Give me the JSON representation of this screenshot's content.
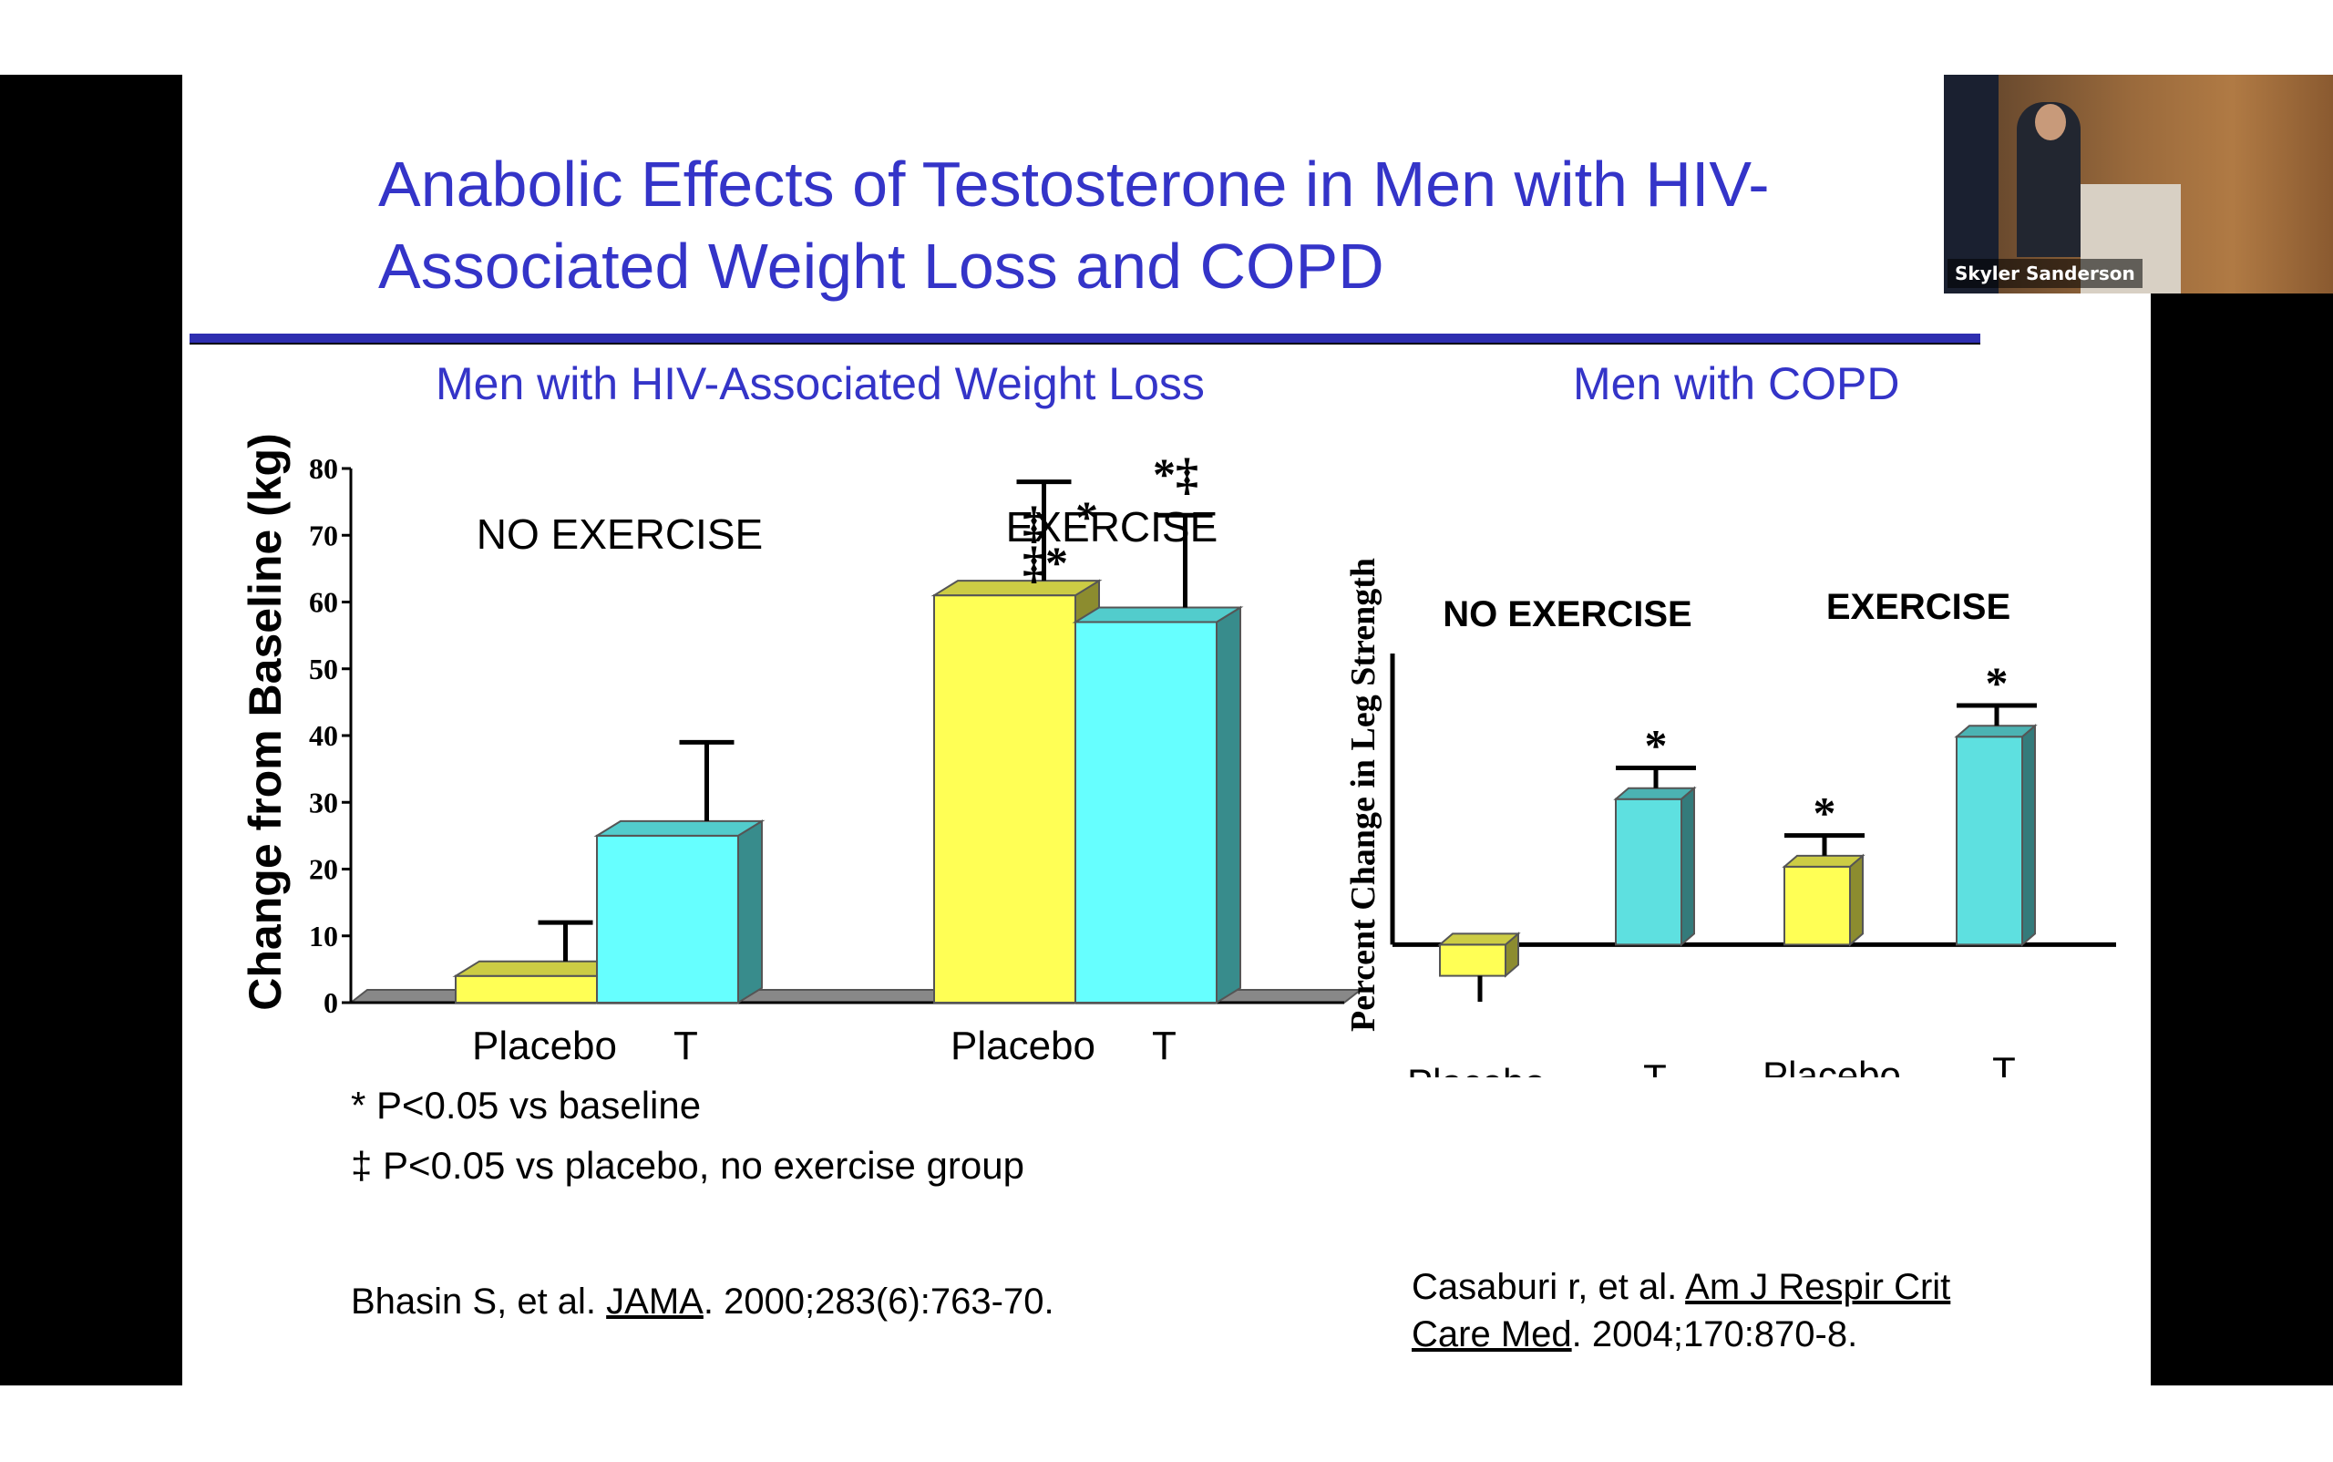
{
  "slide": {
    "title_line1": "Anabolic Effects of Testosterone in Men with HIV-",
    "title_line2": "Associated Weight Loss and COPD",
    "left_subtitle": "Men with HIV-Associated Weight Loss",
    "right_subtitle": "Men with COPD",
    "footnote1": "* P<0.05 vs baseline",
    "footnote2": "‡ P<0.05 vs placebo, no exercise group",
    "ref_left_prefix": "Bhasin S, et al. ",
    "ref_left_journal": "JAMA",
    "ref_left_suffix": ". 2000;283(6):763-70.",
    "ref_right_prefix": "Casaburi r, et al. ",
    "ref_right_journal_line1": "Am J Respir Crit",
    "ref_right_journal_line2": "Care Med",
    "ref_right_suffix": ". 2004;170:870-8."
  },
  "video": {
    "speaker_name": "Skyler Sanderson"
  },
  "colors": {
    "placebo": "#ffff55",
    "testosterone": "#66ffff",
    "copd_t": "#5ee0e0",
    "title_blue": "#3434c8"
  },
  "chart_data": [
    {
      "type": "bar",
      "title": "Men with HIV-Associated Weight Loss",
      "ylabel": "Change from Baseline (kg)",
      "ylim": [
        0,
        80
      ],
      "yticks": [
        0,
        10,
        20,
        30,
        40,
        50,
        60,
        70,
        80
      ],
      "groups": [
        "NO EXERCISE",
        "EXERCISE"
      ],
      "categories": [
        "Placebo",
        "T"
      ],
      "series": [
        {
          "group": "NO EXERCISE",
          "name": "Placebo",
          "value": 4,
          "error": 8,
          "annotation": ""
        },
        {
          "group": "NO EXERCISE",
          "name": "T",
          "value": 25,
          "error": 14,
          "annotation": ""
        },
        {
          "group": "EXERCISE",
          "name": "Placebo",
          "value": 61,
          "error": 17,
          "annotation": "‡ * ‡*"
        },
        {
          "group": "EXERCISE",
          "name": "T",
          "value": 57,
          "error": 16,
          "annotation": "*‡"
        }
      ]
    },
    {
      "type": "bar",
      "title": "Men with COPD",
      "ylabel": "Percent Change in Leg Strength",
      "groups": [
        "NO EXERCISE",
        "EXERCISE"
      ],
      "categories": [
        "Placebo",
        "T",
        "Placebo",
        "T"
      ],
      "ylim": [
        -4,
        28
      ],
      "values": [
        -3,
        14,
        7.5,
        20
      ],
      "errors": [
        2.5,
        3,
        3,
        3
      ],
      "annotations": [
        "",
        "*",
        "*",
        "*"
      ]
    }
  ]
}
